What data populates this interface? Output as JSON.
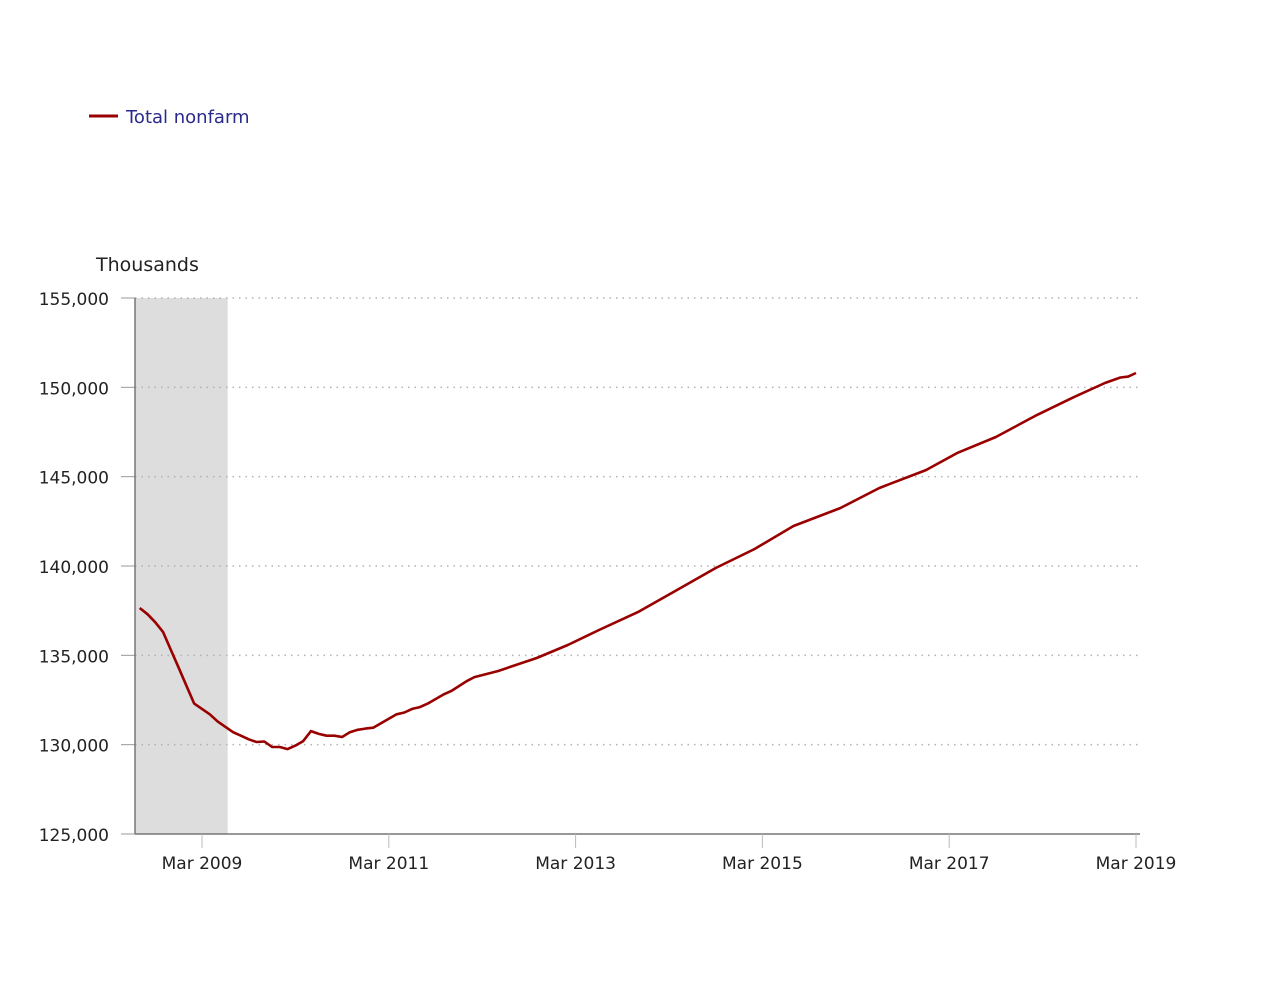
{
  "chart_data": {
    "type": "line",
    "title": "",
    "ylabel": "Thousands",
    "xlabel": "",
    "ylim": [
      125000,
      155000
    ],
    "xlim": [
      "2008-07",
      "2019-03"
    ],
    "y_ticks": [
      125000,
      130000,
      135000,
      140000,
      145000,
      150000,
      155000
    ],
    "y_tick_labels": [
      "125,000",
      "130,000",
      "135,000",
      "140,000",
      "145,000",
      "150,000",
      "155,000"
    ],
    "x_ticks": [
      "2009-03",
      "2011-03",
      "2013-03",
      "2015-03",
      "2017-03",
      "2019-03"
    ],
    "x_tick_labels": [
      "Mar 2009",
      "Mar 2011",
      "Mar 2013",
      "Mar 2015",
      "Mar 2017",
      "Mar 2019"
    ],
    "grid": "horizontal dotted",
    "legend_position": "top-left",
    "recession_shading": {
      "start": "2008-07",
      "end": "2009-06",
      "color": "#dddddd"
    },
    "series": [
      {
        "name": "Total nonfarm",
        "color": "#990000",
        "points": [
          [
            "2008-07",
            137650
          ],
          [
            "2008-08",
            137300
          ],
          [
            "2008-09",
            136850
          ],
          [
            "2008-10",
            136300
          ],
          [
            "2008-11",
            135300
          ],
          [
            "2008-12",
            134300
          ],
          [
            "2009-01",
            133300
          ],
          [
            "2009-02",
            132300
          ],
          [
            "2009-03",
            132000
          ],
          [
            "2009-04",
            131700
          ],
          [
            "2009-05",
            131300
          ],
          [
            "2009-06",
            131000
          ],
          [
            "2009-07",
            130700
          ],
          [
            "2009-08",
            130500
          ],
          [
            "2009-09",
            130300
          ],
          [
            "2009-10",
            130150
          ],
          [
            "2009-11",
            130180
          ],
          [
            "2009-12",
            129870
          ],
          [
            "2010-01",
            129870
          ],
          [
            "2010-02",
            129750
          ],
          [
            "2010-03",
            129950
          ],
          [
            "2010-04",
            130200
          ],
          [
            "2010-05",
            130760
          ],
          [
            "2010-06",
            130600
          ],
          [
            "2010-07",
            130500
          ],
          [
            "2010-08",
            130500
          ],
          [
            "2010-09",
            130430
          ],
          [
            "2010-10",
            130700
          ],
          [
            "2010-11",
            130830
          ],
          [
            "2010-12",
            130900
          ],
          [
            "2011-01",
            130950
          ],
          [
            "2011-02",
            131200
          ],
          [
            "2011-03",
            131450
          ],
          [
            "2011-04",
            131700
          ],
          [
            "2011-05",
            131800
          ],
          [
            "2011-06",
            132000
          ],
          [
            "2011-07",
            132100
          ],
          [
            "2011-08",
            132300
          ],
          [
            "2011-09",
            132550
          ],
          [
            "2011-10",
            132800
          ],
          [
            "2011-11",
            133000
          ],
          [
            "2011-12",
            133280
          ],
          [
            "2012-01",
            133550
          ],
          [
            "2012-02",
            133780
          ],
          [
            "2012-05",
            134120
          ],
          [
            "2012-10",
            134850
          ],
          [
            "2013-02",
            135580
          ],
          [
            "2013-06",
            136420
          ],
          [
            "2013-11",
            137420
          ],
          [
            "2014-04",
            138650
          ],
          [
            "2014-09",
            139890
          ],
          [
            "2015-02",
            140950
          ],
          [
            "2015-07",
            142240
          ],
          [
            "2016-01",
            143240
          ],
          [
            "2016-06",
            144360
          ],
          [
            "2016-12",
            145370
          ],
          [
            "2017-04",
            146320
          ],
          [
            "2017-09",
            147220
          ],
          [
            "2018-02",
            148390
          ],
          [
            "2018-07",
            149450
          ],
          [
            "2018-11",
            150240
          ],
          [
            "2019-01",
            150550
          ],
          [
            "2019-02",
            150600
          ],
          [
            "2019-03",
            150800
          ]
        ]
      }
    ]
  }
}
